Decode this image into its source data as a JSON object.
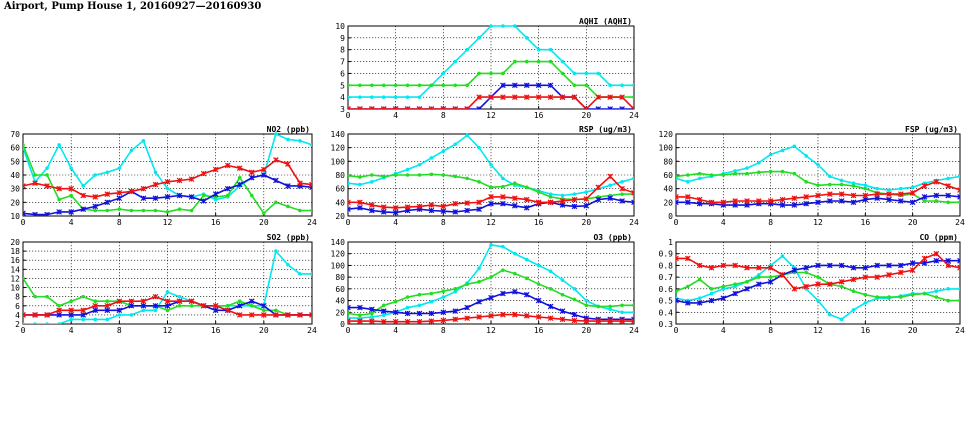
{
  "page": {
    "title": "Airport, Pump House 1, 20160927—20160930"
  },
  "colors": {
    "cyan": "#00e8f0",
    "green": "#22dd22",
    "blue": "#1111dd",
    "red": "#ee1111"
  },
  "chart_data": [
    {
      "id": "aqhi",
      "type": "line",
      "title": "AQHI (AQHI)",
      "xlim": [
        0,
        24
      ],
      "xticks": [
        0,
        4,
        8,
        12,
        16,
        20,
        24
      ],
      "ylim": [
        3,
        10
      ],
      "yticks": [
        3,
        4,
        5,
        6,
        7,
        8,
        9,
        10
      ],
      "grid": true,
      "x": [
        0,
        1,
        2,
        3,
        4,
        5,
        6,
        7,
        8,
        9,
        10,
        11,
        12,
        13,
        14,
        15,
        16,
        17,
        18,
        19,
        20,
        21,
        22,
        23,
        24
      ],
      "series": [
        {
          "color": "cyan",
          "marker": "circle",
          "values": [
            4,
            4,
            4,
            4,
            4,
            4,
            4,
            5,
            6,
            7,
            8,
            9,
            10,
            10,
            10,
            9,
            8,
            8,
            7,
            6,
            6,
            6,
            5,
            5,
            5
          ]
        },
        {
          "color": "green",
          "marker": "circle",
          "values": [
            5,
            5,
            5,
            5,
            5,
            5,
            5,
            5,
            5,
            5,
            5,
            6,
            6,
            6,
            7,
            7,
            7,
            7,
            6,
            5,
            5,
            4,
            4,
            4,
            4
          ]
        },
        {
          "color": "blue",
          "marker": "star",
          "values": [
            3,
            3,
            3,
            3,
            3,
            3,
            3,
            3,
            3,
            3,
            3,
            3,
            4,
            5,
            5,
            5,
            5,
            5,
            4,
            4,
            3,
            3,
            3,
            3,
            3
          ]
        },
        {
          "color": "red",
          "marker": "star",
          "values": [
            3,
            3,
            3,
            3,
            3,
            3,
            3,
            3,
            3,
            3,
            3,
            4,
            4,
            4,
            4,
            4,
            4,
            4,
            4,
            4,
            3,
            4,
            4,
            4,
            3
          ]
        }
      ]
    },
    {
      "id": "no2",
      "type": "line",
      "title": "NO2 (ppb)",
      "xlim": [
        0,
        24
      ],
      "xticks": [
        0,
        4,
        8,
        12,
        16,
        20,
        24
      ],
      "ylim": [
        10,
        70
      ],
      "yticks": [
        10,
        20,
        30,
        40,
        50,
        60,
        70
      ],
      "grid": true,
      "x": [
        0,
        1,
        2,
        3,
        4,
        5,
        6,
        7,
        8,
        9,
        10,
        11,
        12,
        13,
        14,
        15,
        16,
        17,
        18,
        19,
        20,
        21,
        22,
        23,
        24
      ],
      "series": [
        {
          "color": "cyan",
          "marker": "circle",
          "values": [
            60,
            35,
            45,
            62,
            45,
            32,
            40,
            42,
            45,
            58,
            65,
            42,
            30,
            25,
            24,
            26,
            22,
            24,
            32,
            38,
            40,
            70,
            66,
            65,
            62
          ]
        },
        {
          "color": "green",
          "marker": "circle",
          "values": [
            62,
            40,
            40,
            22,
            25,
            15,
            14,
            14,
            15,
            14,
            14,
            14,
            13,
            15,
            14,
            25,
            24,
            25,
            38,
            25,
            12,
            20,
            17,
            14,
            14
          ]
        },
        {
          "color": "blue",
          "marker": "star",
          "values": [
            12,
            11,
            11,
            13,
            13,
            15,
            17,
            20,
            23,
            28,
            23,
            23,
            24,
            25,
            24,
            21,
            26,
            30,
            33,
            38,
            40,
            36,
            32,
            32,
            31
          ]
        },
        {
          "color": "red",
          "marker": "star",
          "values": [
            32,
            34,
            32,
            30,
            30,
            25,
            24,
            26,
            27,
            28,
            30,
            33,
            35,
            36,
            37,
            41,
            44,
            47,
            45,
            42,
            44,
            51,
            48,
            34,
            33
          ]
        }
      ]
    },
    {
      "id": "rsp",
      "type": "line",
      "title": "RSP (ug/m3)",
      "xlim": [
        0,
        24
      ],
      "xticks": [
        0,
        4,
        8,
        12,
        16,
        20,
        24
      ],
      "ylim": [
        20,
        140
      ],
      "yticks": [
        20,
        40,
        60,
        80,
        100,
        120,
        140
      ],
      "grid": true,
      "x": [
        0,
        1,
        2,
        3,
        4,
        5,
        6,
        7,
        8,
        9,
        10,
        11,
        12,
        13,
        14,
        15,
        16,
        17,
        18,
        19,
        20,
        21,
        22,
        23,
        24
      ],
      "series": [
        {
          "color": "cyan",
          "marker": "circle",
          "values": [
            68,
            66,
            70,
            76,
            82,
            88,
            95,
            105,
            115,
            125,
            138,
            120,
            95,
            75,
            65,
            62,
            57,
            52,
            50,
            52,
            55,
            60,
            65,
            70,
            75
          ]
        },
        {
          "color": "green",
          "marker": "circle",
          "values": [
            79,
            77,
            80,
            78,
            80,
            80,
            80,
            81,
            80,
            78,
            75,
            70,
            62,
            63,
            68,
            62,
            55,
            48,
            45,
            44,
            45,
            48,
            50,
            52,
            52
          ]
        },
        {
          "color": "blue",
          "marker": "star",
          "values": [
            30,
            32,
            28,
            26,
            25,
            28,
            30,
            28,
            27,
            26,
            28,
            30,
            38,
            38,
            35,
            32,
            38,
            40,
            36,
            34,
            35,
            44,
            46,
            42,
            40
          ]
        },
        {
          "color": "red",
          "marker": "star",
          "values": [
            40,
            40,
            36,
            33,
            32,
            33,
            34,
            36,
            34,
            38,
            39,
            40,
            48,
            48,
            46,
            44,
            40,
            40,
            42,
            44,
            45,
            62,
            78,
            60,
            54
          ]
        }
      ]
    },
    {
      "id": "fsp",
      "type": "line",
      "title": "FSP (ug/m3)",
      "xlim": [
        0,
        24
      ],
      "xticks": [
        0,
        4,
        8,
        12,
        16,
        20,
        24
      ],
      "ylim": [
        0,
        120
      ],
      "yticks": [
        0,
        20,
        40,
        60,
        80,
        100,
        120
      ],
      "grid": true,
      "x": [
        0,
        1,
        2,
        3,
        4,
        5,
        6,
        7,
        8,
        9,
        10,
        11,
        12,
        13,
        14,
        15,
        16,
        17,
        18,
        19,
        20,
        21,
        22,
        23,
        24
      ],
      "series": [
        {
          "color": "cyan",
          "marker": "circle",
          "values": [
            55,
            50,
            55,
            58,
            62,
            66,
            70,
            78,
            90,
            96,
            102,
            88,
            75,
            58,
            52,
            48,
            45,
            40,
            38,
            40,
            42,
            48,
            52,
            55,
            58
          ]
        },
        {
          "color": "green",
          "marker": "circle",
          "values": [
            58,
            60,
            62,
            60,
            60,
            62,
            62,
            64,
            65,
            65,
            62,
            50,
            45,
            46,
            46,
            44,
            40,
            34,
            32,
            30,
            32,
            22,
            22,
            20,
            20
          ]
        },
        {
          "color": "blue",
          "marker": "star",
          "values": [
            20,
            20,
            18,
            18,
            16,
            16,
            16,
            18,
            18,
            16,
            16,
            18,
            20,
            22,
            22,
            20,
            24,
            26,
            24,
            22,
            20,
            28,
            30,
            30,
            28
          ]
        },
        {
          "color": "red",
          "marker": "star",
          "values": [
            28,
            28,
            24,
            20,
            20,
            22,
            22,
            22,
            22,
            24,
            26,
            28,
            30,
            32,
            32,
            30,
            30,
            32,
            32,
            32,
            34,
            44,
            50,
            44,
            38
          ]
        }
      ]
    },
    {
      "id": "so2",
      "type": "line",
      "title": "SO2 (ppb)",
      "xlim": [
        0,
        24
      ],
      "xticks": [
        0,
        4,
        8,
        12,
        16,
        20,
        24
      ],
      "ylim": [
        2,
        20
      ],
      "yticks": [
        2,
        4,
        6,
        8,
        10,
        12,
        14,
        16,
        18,
        20
      ],
      "grid": true,
      "x": [
        0,
        1,
        2,
        3,
        4,
        5,
        6,
        7,
        8,
        9,
        10,
        11,
        12,
        13,
        14,
        15,
        16,
        17,
        18,
        19,
        20,
        21,
        22,
        23,
        24
      ],
      "series": [
        {
          "color": "cyan",
          "marker": "circle",
          "values": [
            2,
            2,
            2,
            2,
            3,
            3,
            3,
            3,
            4,
            4,
            5,
            5,
            9,
            8,
            7,
            6,
            6,
            6,
            6,
            6,
            6,
            18,
            15,
            13,
            13
          ]
        },
        {
          "color": "green",
          "marker": "circle",
          "values": [
            12,
            8,
            8,
            6,
            7,
            8,
            7,
            7,
            7,
            6,
            6,
            6,
            5,
            6,
            6,
            6,
            6,
            6,
            7,
            6,
            5,
            5,
            4,
            4,
            4
          ]
        },
        {
          "color": "blue",
          "marker": "star",
          "values": [
            4,
            4,
            4,
            4,
            4,
            4,
            5,
            5,
            5,
            6,
            6,
            6,
            6,
            7,
            7,
            6,
            5,
            5,
            6,
            7,
            6,
            4,
            4,
            4,
            4
          ]
        },
        {
          "color": "red",
          "marker": "star",
          "values": [
            4,
            4,
            4,
            5,
            5,
            5,
            6,
            6,
            7,
            7,
            7,
            8,
            7,
            7,
            7,
            6,
            6,
            5,
            4,
            4,
            4,
            4,
            4,
            4,
            4
          ]
        }
      ]
    },
    {
      "id": "o3",
      "type": "line",
      "title": "O3 (ppb)",
      "xlim": [
        0,
        24
      ],
      "xticks": [
        0,
        4,
        8,
        12,
        16,
        20,
        24
      ],
      "ylim": [
        0,
        140
      ],
      "yticks": [
        0,
        20,
        40,
        60,
        80,
        100,
        120,
        140
      ],
      "grid": true,
      "x": [
        0,
        1,
        2,
        3,
        4,
        5,
        6,
        7,
        8,
        9,
        10,
        11,
        12,
        13,
        14,
        15,
        16,
        17,
        18,
        19,
        20,
        21,
        22,
        23,
        24
      ],
      "series": [
        {
          "color": "cyan",
          "marker": "circle",
          "values": [
            10,
            10,
            12,
            15,
            20,
            28,
            32,
            38,
            46,
            55,
            70,
            95,
            135,
            132,
            120,
            110,
            100,
            90,
            75,
            60,
            40,
            30,
            25,
            20,
            20
          ]
        },
        {
          "color": "green",
          "marker": "circle",
          "values": [
            18,
            15,
            18,
            32,
            38,
            46,
            50,
            52,
            56,
            60,
            68,
            72,
            80,
            92,
            86,
            78,
            68,
            60,
            50,
            42,
            32,
            30,
            30,
            32,
            32
          ]
        },
        {
          "color": "blue",
          "marker": "star",
          "values": [
            28,
            28,
            25,
            22,
            20,
            18,
            18,
            18,
            20,
            22,
            28,
            38,
            45,
            52,
            55,
            50,
            40,
            30,
            22,
            16,
            10,
            8,
            8,
            8,
            8
          ]
        },
        {
          "color": "red",
          "marker": "star",
          "values": [
            5,
            5,
            5,
            4,
            4,
            4,
            4,
            5,
            6,
            8,
            10,
            12,
            14,
            16,
            16,
            14,
            12,
            10,
            8,
            6,
            5,
            5,
            5,
            5,
            5
          ]
        }
      ]
    },
    {
      "id": "co",
      "type": "line",
      "title": "CO (ppm)",
      "xlim": [
        0,
        24
      ],
      "xticks": [
        0,
        4,
        8,
        12,
        16,
        20,
        24
      ],
      "ylim": [
        0.3,
        1.0
      ],
      "yticks": [
        0.3,
        0.4,
        0.5,
        0.6,
        0.7,
        0.8,
        0.9,
        1.0
      ],
      "grid": true,
      "x": [
        0,
        1,
        2,
        3,
        4,
        5,
        6,
        7,
        8,
        9,
        10,
        11,
        12,
        13,
        14,
        15,
        16,
        17,
        18,
        19,
        20,
        21,
        22,
        23,
        24
      ],
      "series": [
        {
          "color": "cyan",
          "marker": "circle",
          "values": [
            0.52,
            0.5,
            0.52,
            0.56,
            0.6,
            0.62,
            0.66,
            0.72,
            0.8,
            0.88,
            0.78,
            0.6,
            0.5,
            0.38,
            0.34,
            0.42,
            0.48,
            0.52,
            0.52,
            0.54,
            0.56,
            0.56,
            0.58,
            0.6,
            0.6
          ]
        },
        {
          "color": "green",
          "marker": "circle",
          "values": [
            0.58,
            0.62,
            0.68,
            0.6,
            0.62,
            0.64,
            0.66,
            0.7,
            0.7,
            0.72,
            0.74,
            0.74,
            0.7,
            0.64,
            0.62,
            0.58,
            0.55,
            0.53,
            0.53,
            0.53,
            0.55,
            0.56,
            0.53,
            0.5,
            0.5
          ]
        },
        {
          "color": "blue",
          "marker": "star",
          "values": [
            0.5,
            0.48,
            0.48,
            0.5,
            0.52,
            0.56,
            0.6,
            0.64,
            0.66,
            0.72,
            0.76,
            0.78,
            0.8,
            0.8,
            0.8,
            0.78,
            0.78,
            0.8,
            0.8,
            0.8,
            0.82,
            0.82,
            0.84,
            0.84,
            0.84
          ]
        },
        {
          "color": "red",
          "marker": "star",
          "values": [
            0.86,
            0.86,
            0.8,
            0.78,
            0.8,
            0.8,
            0.78,
            0.78,
            0.78,
            0.72,
            0.6,
            0.62,
            0.64,
            0.64,
            0.66,
            0.68,
            0.7,
            0.7,
            0.72,
            0.74,
            0.76,
            0.86,
            0.9,
            0.8,
            0.78
          ]
        }
      ]
    }
  ]
}
